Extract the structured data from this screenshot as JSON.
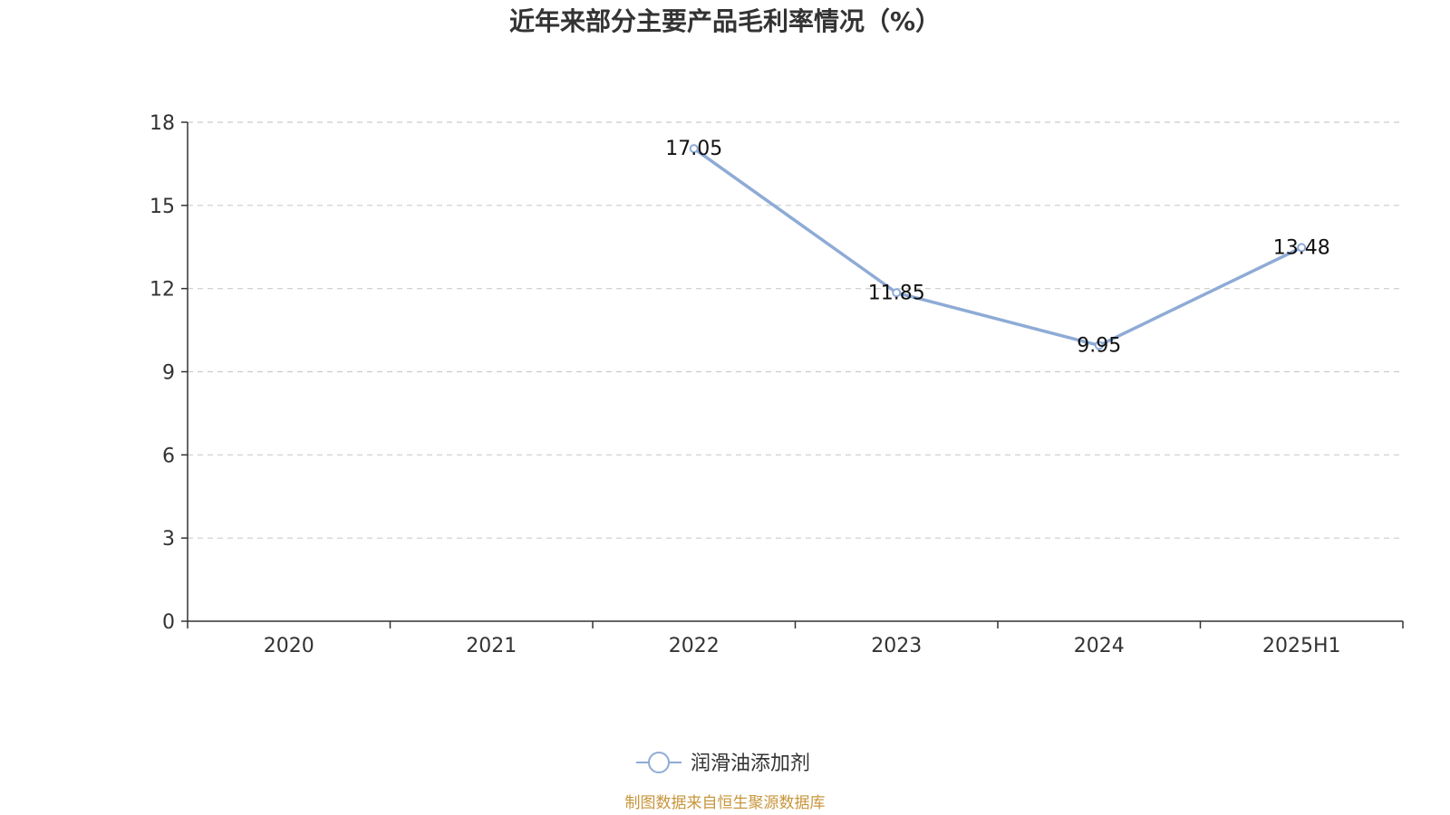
{
  "chart_data": {
    "type": "line",
    "title": "近年来部分主要产品毛利率情况（%）",
    "categories": [
      "2020",
      "2021",
      "2022",
      "2023",
      "2024",
      "2025H1"
    ],
    "series": [
      {
        "name": "润滑油添加剂",
        "values": [
          null,
          null,
          17.05,
          11.85,
          9.95,
          13.48
        ],
        "labels": [
          null,
          null,
          "17.05",
          "11.85",
          "9.95",
          "13.48"
        ],
        "color": "#8eabd6"
      }
    ],
    "ylim": [
      0,
      18
    ],
    "yticks": [
      "0",
      "3",
      "6",
      "9",
      "12",
      "15",
      "18"
    ],
    "grid": true,
    "legend_position": "bottom-center"
  },
  "source_note": "制图数据来自恒生聚源数据库",
  "colors": {
    "axis": "#333333",
    "grid": "#cccccc",
    "line": "#8eabd6",
    "source": "#c8963c"
  }
}
